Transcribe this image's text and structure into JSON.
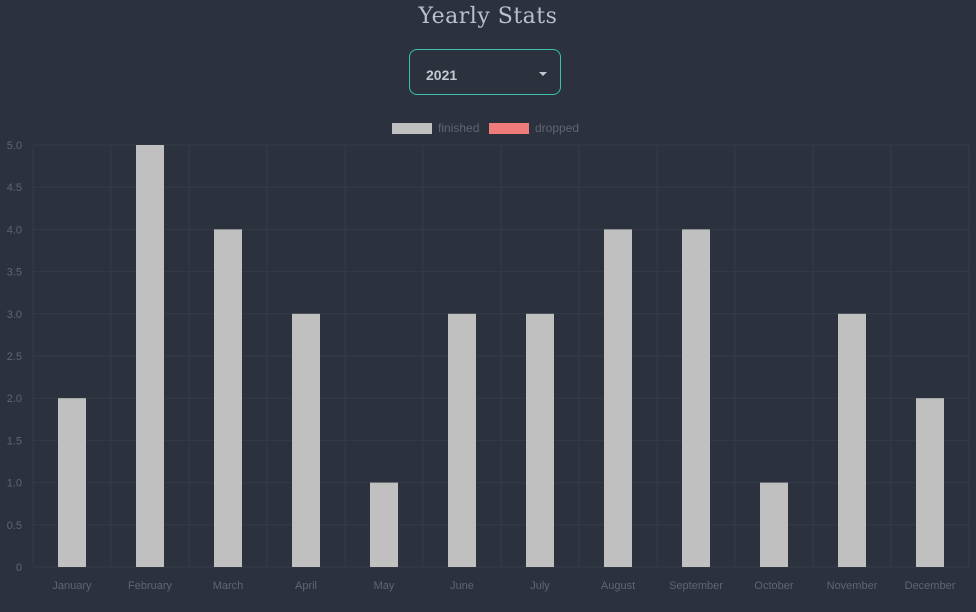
{
  "header": {
    "title": "Yearly Stats"
  },
  "year_select": {
    "value": "2021",
    "icon": "caret-down-icon"
  },
  "colors": {
    "finished": "#c0c0c0",
    "dropped": "#f07b7b",
    "accent": "#3fbfae"
  },
  "chart_data": {
    "type": "bar",
    "categories": [
      "January",
      "February",
      "March",
      "April",
      "May",
      "June",
      "July",
      "August",
      "September",
      "October",
      "November",
      "December"
    ],
    "series": [
      {
        "name": "finished",
        "values": [
          2,
          5,
          4,
          3,
          1,
          3,
          3,
          4,
          4,
          1,
          3,
          2
        ]
      },
      {
        "name": "dropped",
        "values": [
          0,
          0,
          0,
          0,
          0,
          0,
          0,
          0,
          0,
          0,
          0,
          0
        ]
      }
    ],
    "title": "",
    "xlabel": "",
    "ylabel": "",
    "ylim": [
      0,
      5
    ],
    "yticks": [
      "0",
      "0.5",
      "1.0",
      "1.5",
      "2.0",
      "2.5",
      "3.0",
      "3.5",
      "4.0",
      "4.5",
      "5.0"
    ],
    "grid": true,
    "legend": "top-center"
  }
}
